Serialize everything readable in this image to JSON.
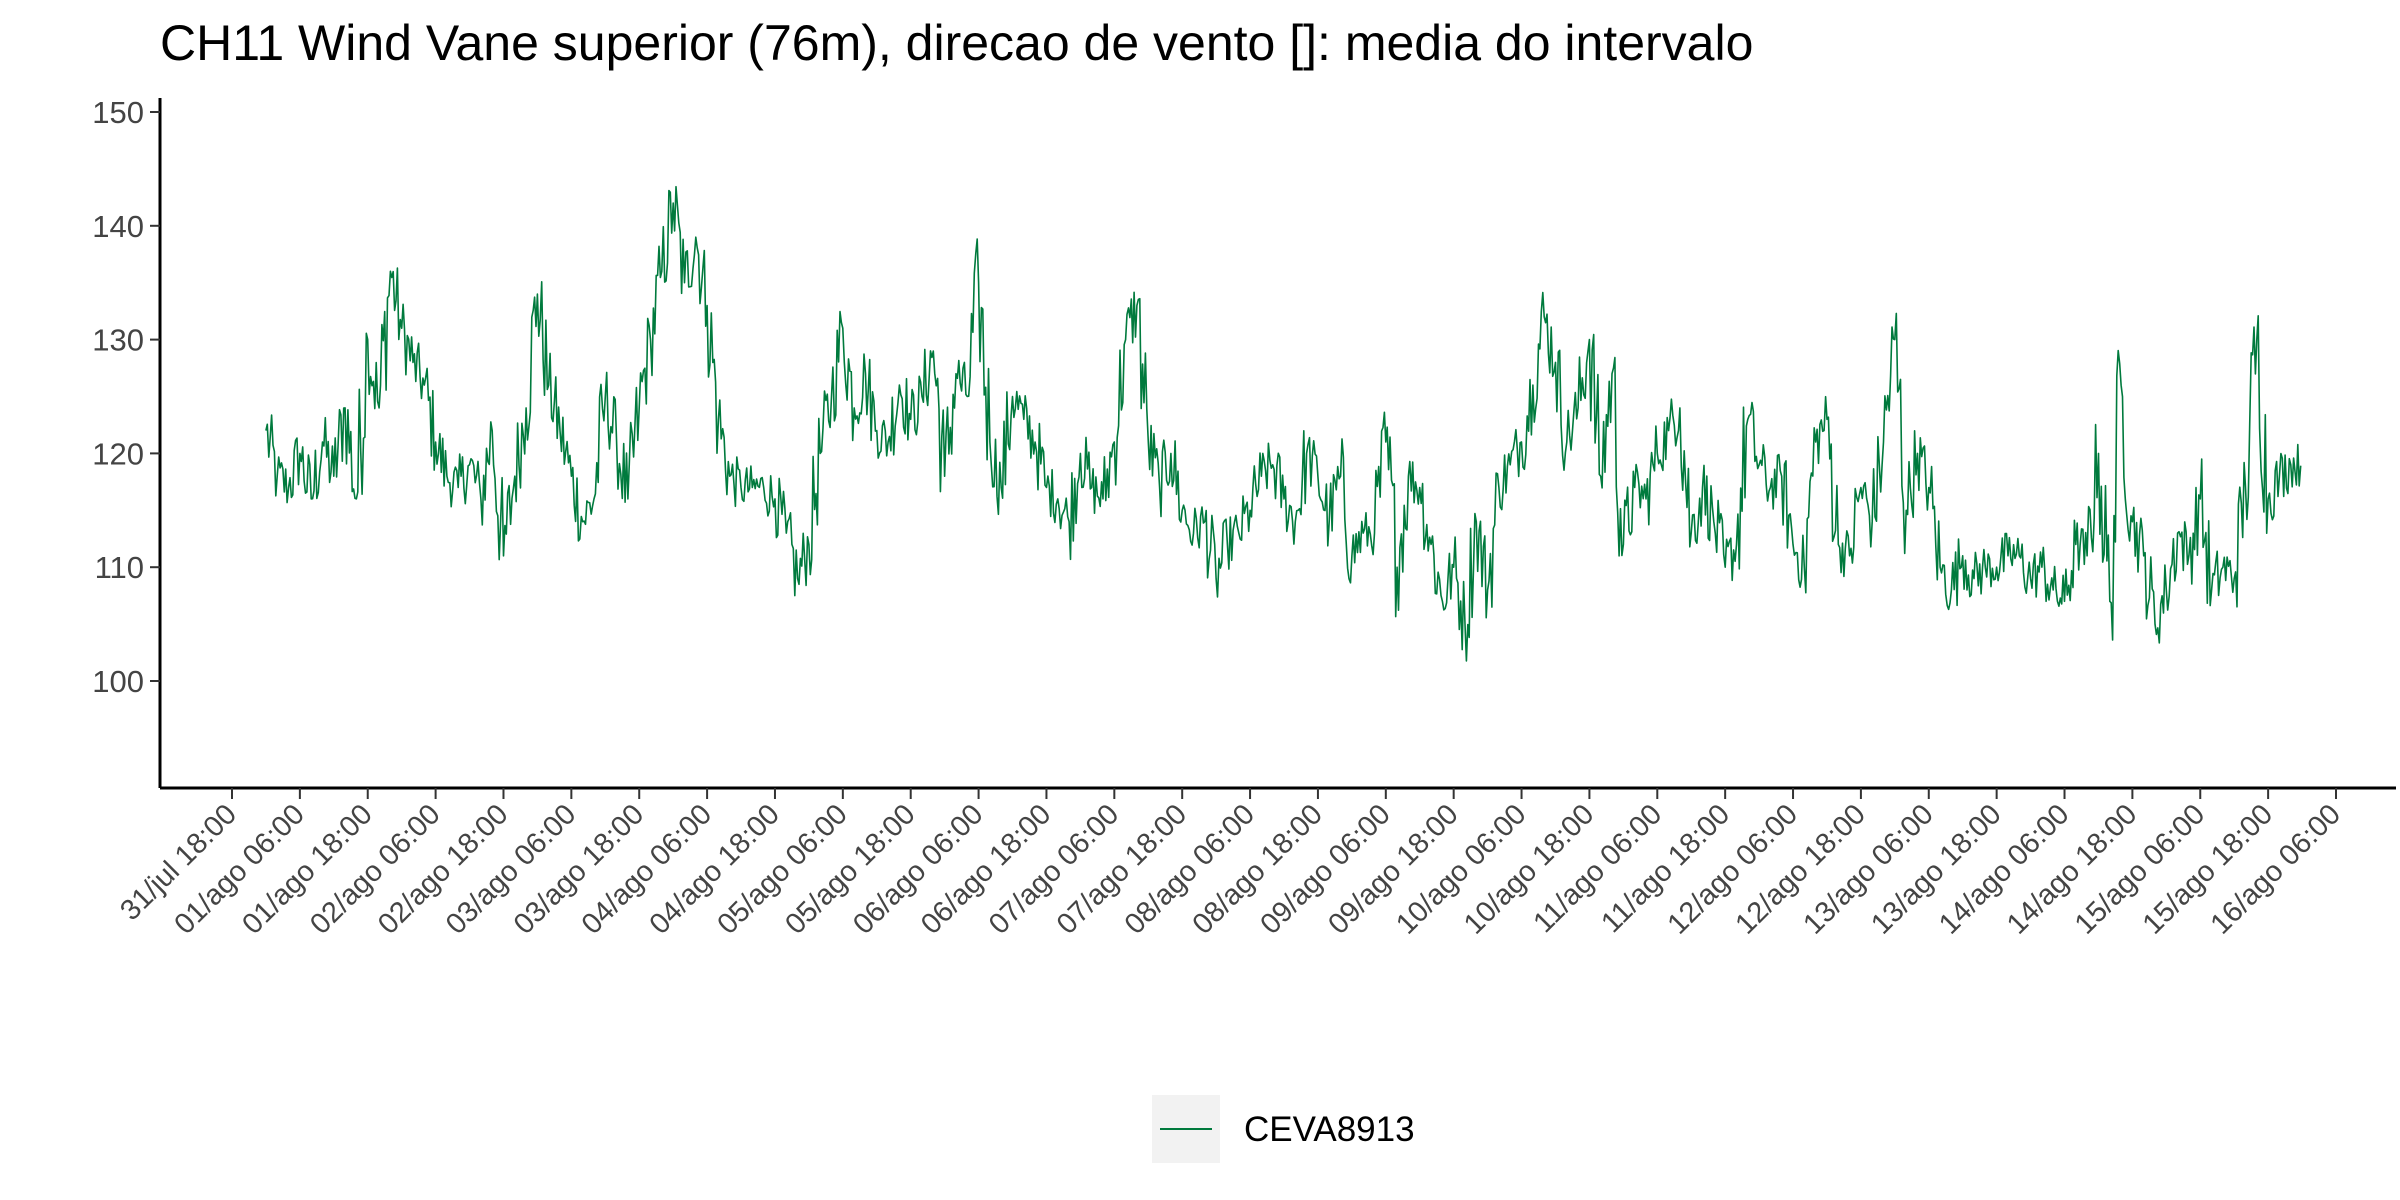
{
  "chart_data": {
    "type": "line",
    "title": "CH11 Wind Vane superior (76m), direcao de vento []: media do intervalo",
    "xlabel": "",
    "ylabel": "",
    "ylim": [
      90,
      151
    ],
    "yticks": [
      100,
      110,
      120,
      130,
      140,
      150
    ],
    "xlim": [
      "31/jul 18:00",
      "16/ago 06:00"
    ],
    "xticks": [
      "31/jul 18:00",
      "01/ago 06:00",
      "01/ago 18:00",
      "02/ago 06:00",
      "02/ago 18:00",
      "03/ago 06:00",
      "03/ago 18:00",
      "04/ago 06:00",
      "04/ago 18:00",
      "05/ago 06:00",
      "05/ago 18:00",
      "06/ago 06:00",
      "06/ago 18:00",
      "07/ago 06:00",
      "07/ago 18:00",
      "08/ago 06:00",
      "08/ago 18:00",
      "09/ago 06:00",
      "09/ago 18:00",
      "10/ago 06:00",
      "10/ago 18:00",
      "11/ago 06:00",
      "11/ago 18:00",
      "12/ago 06:00",
      "12/ago 18:00",
      "13/ago 06:00",
      "13/ago 18:00",
      "14/ago 06:00",
      "14/ago 18:00",
      "15/ago 06:00",
      "15/ago 18:00",
      "16/ago 06:00"
    ],
    "grid": false,
    "legend_position": "bottom",
    "series": [
      {
        "name": "CEVA8913",
        "color": "#007A3D",
        "x": [
          "01/ago 00:00",
          "01/ago 02:00",
          "01/ago 04:00",
          "01/ago 06:00",
          "01/ago 08:00",
          "01/ago 10:00",
          "01/ago 12:00",
          "01/ago 14:00",
          "01/ago 16:00",
          "01/ago 18:00",
          "01/ago 20:00",
          "01/ago 22:00",
          "02/ago 00:00",
          "02/ago 02:00",
          "02/ago 04:00",
          "02/ago 06:00",
          "02/ago 08:00",
          "02/ago 10:00",
          "02/ago 12:00",
          "02/ago 14:00",
          "02/ago 16:00",
          "02/ago 18:00",
          "02/ago 20:00",
          "02/ago 22:00",
          "03/ago 00:00",
          "03/ago 02:00",
          "03/ago 04:00",
          "03/ago 06:00",
          "03/ago 08:00",
          "03/ago 10:00",
          "03/ago 12:00",
          "03/ago 14:00",
          "03/ago 16:00",
          "03/ago 18:00",
          "03/ago 20:00",
          "03/ago 22:00",
          "04/ago 00:00",
          "04/ago 02:00",
          "04/ago 04:00",
          "04/ago 06:00",
          "04/ago 08:00",
          "04/ago 10:00",
          "04/ago 12:00",
          "04/ago 14:00",
          "04/ago 16:00",
          "04/ago 18:00",
          "04/ago 20:00",
          "04/ago 22:00",
          "05/ago 00:00",
          "05/ago 02:00",
          "05/ago 04:00",
          "05/ago 06:00",
          "05/ago 08:00",
          "05/ago 10:00",
          "05/ago 12:00",
          "05/ago 14:00",
          "05/ago 16:00",
          "05/ago 18:00",
          "05/ago 20:00",
          "05/ago 22:00",
          "06/ago 00:00",
          "06/ago 02:00",
          "06/ago 04:00",
          "06/ago 06:00",
          "06/ago 08:00",
          "06/ago 10:00",
          "06/ago 12:00",
          "06/ago 14:00",
          "06/ago 16:00",
          "06/ago 18:00",
          "06/ago 20:00",
          "06/ago 22:00",
          "07/ago 00:00",
          "07/ago 02:00",
          "07/ago 04:00",
          "07/ago 06:00",
          "07/ago 08:00",
          "07/ago 10:00",
          "07/ago 12:00",
          "07/ago 14:00",
          "07/ago 16:00",
          "07/ago 18:00",
          "07/ago 20:00",
          "07/ago 22:00",
          "08/ago 00:00",
          "08/ago 02:00",
          "08/ago 04:00",
          "08/ago 06:00",
          "08/ago 08:00",
          "08/ago 10:00",
          "08/ago 12:00",
          "08/ago 14:00",
          "08/ago 16:00",
          "08/ago 18:00",
          "08/ago 20:00",
          "08/ago 22:00",
          "09/ago 00:00",
          "09/ago 02:00",
          "09/ago 04:00",
          "09/ago 06:00",
          "09/ago 08:00",
          "09/ago 10:00",
          "09/ago 12:00",
          "09/ago 14:00",
          "09/ago 16:00",
          "09/ago 18:00",
          "09/ago 20:00",
          "09/ago 22:00",
          "10/ago 00:00",
          "10/ago 02:00",
          "10/ago 04:00",
          "10/ago 06:00",
          "10/ago 08:00",
          "10/ago 10:00",
          "10/ago 12:00",
          "10/ago 14:00",
          "10/ago 16:00",
          "10/ago 18:00",
          "10/ago 20:00",
          "10/ago 22:00",
          "11/ago 00:00",
          "11/ago 02:00",
          "11/ago 04:00",
          "11/ago 06:00",
          "11/ago 08:00",
          "11/ago 10:00",
          "11/ago 12:00",
          "11/ago 14:00",
          "11/ago 16:00",
          "11/ago 18:00",
          "11/ago 20:00",
          "11/ago 22:00",
          "12/ago 00:00",
          "12/ago 02:00",
          "12/ago 04:00",
          "12/ago 06:00",
          "12/ago 08:00",
          "12/ago 10:00",
          "12/ago 12:00",
          "12/ago 14:00",
          "12/ago 16:00",
          "12/ago 18:00",
          "12/ago 20:00",
          "12/ago 22:00",
          "13/ago 00:00",
          "13/ago 02:00",
          "13/ago 04:00",
          "13/ago 06:00",
          "13/ago 08:00",
          "13/ago 10:00",
          "13/ago 12:00",
          "13/ago 14:00",
          "13/ago 16:00",
          "13/ago 18:00",
          "13/ago 20:00",
          "13/ago 22:00",
          "14/ago 00:00",
          "14/ago 02:00",
          "14/ago 04:00",
          "14/ago 06:00",
          "14/ago 08:00",
          "14/ago 10:00",
          "14/ago 12:00",
          "14/ago 14:00",
          "14/ago 16:00",
          "14/ago 18:00",
          "14/ago 20:00",
          "14/ago 22:00",
          "15/ago 00:00",
          "15/ago 02:00",
          "15/ago 04:00",
          "15/ago 06:00",
          "15/ago 08:00",
          "15/ago 10:00",
          "15/ago 12:00",
          "15/ago 14:00",
          "15/ago 16:00",
          "15/ago 18:00",
          "15/ago 20:00",
          "15/ago 22:00"
        ],
        "values": [
          122,
          118,
          117,
          120,
          116,
          121,
          118,
          124,
          116,
          130,
          124,
          136,
          131,
          128,
          126,
          121,
          118,
          117,
          119,
          116,
          122,
          111,
          118,
          124,
          134,
          126,
          122,
          118,
          114,
          116,
          125,
          121,
          116,
          124,
          130,
          136,
          142,
          135,
          139,
          133,
          123,
          118,
          117,
          117,
          117,
          116,
          113,
          109,
          112,
          120,
          125,
          131,
          124,
          127,
          122,
          121,
          126,
          123,
          125,
          129,
          118,
          127,
          125,
          135,
          121,
          117,
          125,
          123,
          121,
          117,
          116,
          114,
          120,
          117,
          116,
          121,
          130,
          133,
          121,
          117,
          120,
          115,
          113,
          114,
          109,
          112,
          113,
          115,
          118,
          119,
          116,
          114,
          120,
          118,
          114,
          118,
          111,
          113,
          113,
          121,
          110,
          118,
          117,
          112,
          107,
          110,
          105,
          114,
          108,
          117,
          119,
          121,
          126,
          132,
          128,
          121,
          124,
          130,
          118,
          127,
          112,
          117,
          116,
          120,
          122,
          124,
          113,
          117,
          114,
          110,
          112,
          123,
          119,
          117,
          118,
          112,
          110,
          121,
          123,
          112,
          111,
          117,
          114,
          121,
          130,
          115,
          120,
          117,
          110,
          108,
          111,
          109,
          110,
          110,
          111,
          111,
          109,
          110,
          108,
          107,
          112,
          111,
          120,
          107,
          126,
          114,
          111,
          105,
          108,
          113,
          111,
          116,
          108,
          110,
          109,
          117,
          130,
          116,
          118,
          119
        ]
      }
    ]
  },
  "legend": {
    "items": [
      {
        "label": "CEVA8913",
        "color": "#007A3D"
      }
    ]
  }
}
